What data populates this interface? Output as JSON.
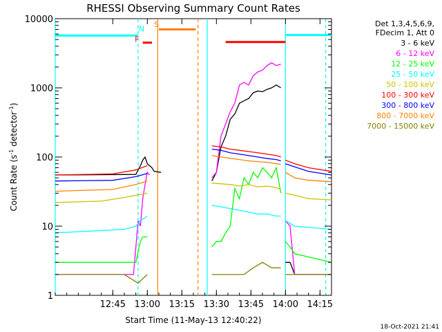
{
  "chart_data": {
    "type": "line",
    "title": "RHESSI Observing Summary Count Rates",
    "xlabel": "Start Time (11-May-13 12:40:22)",
    "ylabel_main": "Count Rate (s",
    "ylabel_sup1": "-1",
    "ylabel_mid": " detector",
    "ylabel_sup2": "-1",
    "ylabel_end": ")",
    "y_scale": "log",
    "ylim": [
      1,
      10000
    ],
    "xlim_minutes": [
      -20,
      100
    ],
    "x_ticks": [
      {
        "t": 5,
        "label": "12:45"
      },
      {
        "t": 20,
        "label": "13:00"
      },
      {
        "t": 35,
        "label": "13:15"
      },
      {
        "t": 50,
        "label": "13:30"
      },
      {
        "t": 65,
        "label": "13:45"
      },
      {
        "t": 80,
        "label": "14:00"
      },
      {
        "t": 95,
        "label": "14:15"
      }
    ],
    "y_ticks": [
      {
        "v": 1,
        "label": "1"
      },
      {
        "v": 10,
        "label": "10"
      },
      {
        "v": 100,
        "label": "100"
      },
      {
        "v": 1000,
        "label": "1000"
      },
      {
        "v": 10000,
        "label": "10000"
      }
    ],
    "legend_header": [
      "Det 1,3,4,5,6,9,",
      "FDecim 1, Att 0"
    ],
    "series": [
      {
        "name": "3 - 6 keV",
        "color": "#000000",
        "points": [
          [
            -20,
            55
          ],
          [
            15,
            56
          ],
          [
            17,
            75
          ],
          [
            18,
            90
          ],
          [
            19,
            100
          ],
          [
            20,
            80
          ],
          [
            22,
            70
          ],
          [
            23,
            62
          ],
          [
            26,
            60
          ],
          [
            45,
            null
          ],
          [
            48,
            45
          ],
          [
            50,
            60
          ],
          [
            52,
            140
          ],
          [
            54,
            200
          ],
          [
            56,
            350
          ],
          [
            58,
            420
          ],
          [
            60,
            600
          ],
          [
            62,
            650
          ],
          [
            64,
            700
          ],
          [
            66,
            850
          ],
          [
            68,
            900
          ],
          [
            70,
            880
          ],
          [
            72,
            950
          ],
          [
            74,
            1000
          ],
          [
            76,
            1100
          ],
          [
            78,
            1000
          ],
          [
            79,
            null
          ],
          [
            80,
            3
          ],
          [
            82,
            3
          ],
          [
            84,
            2
          ],
          [
            100,
            2
          ]
        ]
      },
      {
        "name": "6 - 12 keV",
        "color": "#ff00ff",
        "points": [
          [
            -20,
            2
          ],
          [
            14,
            2
          ],
          [
            16,
            12
          ],
          [
            17,
            10
          ],
          [
            18,
            25
          ],
          [
            19,
            40
          ],
          [
            20,
            60
          ],
          [
            21,
            55
          ],
          [
            22,
            null
          ],
          [
            45,
            null
          ],
          [
            48,
            50
          ],
          [
            50,
            60
          ],
          [
            52,
            200
          ],
          [
            54,
            300
          ],
          [
            56,
            450
          ],
          [
            58,
            600
          ],
          [
            60,
            1100
          ],
          [
            62,
            1200
          ],
          [
            64,
            1100
          ],
          [
            66,
            1500
          ],
          [
            68,
            1700
          ],
          [
            70,
            1800
          ],
          [
            72,
            2100
          ],
          [
            74,
            2300
          ],
          [
            76,
            2100
          ],
          [
            78,
            2200
          ],
          [
            79,
            null
          ],
          [
            80,
            12
          ],
          [
            82,
            10
          ],
          [
            84,
            2
          ],
          [
            100,
            2
          ]
        ]
      },
      {
        "name": "12 - 25 keV",
        "color": "#00ff00",
        "points": [
          [
            -20,
            3
          ],
          [
            15,
            3
          ],
          [
            17,
            6
          ],
          [
            18,
            7
          ],
          [
            20,
            7
          ],
          [
            22,
            null
          ],
          [
            45,
            null
          ],
          [
            48,
            5
          ],
          [
            50,
            6
          ],
          [
            52,
            6
          ],
          [
            54,
            8
          ],
          [
            56,
            10
          ],
          [
            58,
            35
          ],
          [
            60,
            25
          ],
          [
            62,
            50
          ],
          [
            64,
            40
          ],
          [
            66,
            60
          ],
          [
            68,
            50
          ],
          [
            70,
            70
          ],
          [
            72,
            60
          ],
          [
            74,
            50
          ],
          [
            76,
            70
          ],
          [
            78,
            30
          ],
          [
            79,
            null
          ],
          [
            80,
            6
          ],
          [
            82,
            5
          ],
          [
            84,
            4
          ],
          [
            100,
            3
          ]
        ]
      },
      {
        "name": "25 - 50 keV",
        "color": "#00ffff",
        "points": [
          [
            -20,
            8
          ],
          [
            10,
            9
          ],
          [
            15,
            10
          ],
          [
            17,
            12
          ],
          [
            20,
            14
          ],
          [
            22,
            null
          ],
          [
            45,
            null
          ],
          [
            48,
            20
          ],
          [
            52,
            19
          ],
          [
            56,
            18
          ],
          [
            60,
            17
          ],
          [
            64,
            16
          ],
          [
            68,
            15
          ],
          [
            72,
            15
          ],
          [
            76,
            14
          ],
          [
            78,
            14
          ],
          [
            79,
            null
          ],
          [
            80,
            12
          ],
          [
            82,
            11
          ],
          [
            84,
            10
          ],
          [
            100,
            9
          ]
        ]
      },
      {
        "name": "50 - 100 keV",
        "color": "#d0c000",
        "points": [
          [
            -20,
            22
          ],
          [
            0,
            23
          ],
          [
            10,
            26
          ],
          [
            15,
            28
          ],
          [
            20,
            30
          ],
          [
            22,
            null
          ],
          [
            45,
            null
          ],
          [
            48,
            42
          ],
          [
            52,
            41
          ],
          [
            56,
            40
          ],
          [
            60,
            38
          ],
          [
            64,
            40
          ],
          [
            68,
            37
          ],
          [
            72,
            38
          ],
          [
            76,
            36
          ],
          [
            78,
            34
          ],
          [
            79,
            null
          ],
          [
            80,
            30
          ],
          [
            84,
            28
          ],
          [
            90,
            25
          ],
          [
            100,
            24
          ]
        ]
      },
      {
        "name": "100 - 300 keV",
        "color": "#ff0000",
        "points": [
          [
            -20,
            55
          ],
          [
            5,
            57
          ],
          [
            15,
            65
          ],
          [
            20,
            75
          ],
          [
            22,
            null
          ],
          [
            45,
            null
          ],
          [
            48,
            145
          ],
          [
            52,
            140
          ],
          [
            56,
            130
          ],
          [
            60,
            125
          ],
          [
            64,
            120
          ],
          [
            68,
            115
          ],
          [
            72,
            110
          ],
          [
            76,
            105
          ],
          [
            78,
            100
          ],
          [
            79,
            null
          ],
          [
            80,
            90
          ],
          [
            84,
            80
          ],
          [
            90,
            70
          ],
          [
            100,
            62
          ]
        ]
      },
      {
        "name": "300 - 800 keV",
        "color": "#0000ff",
        "points": [
          [
            -20,
            45
          ],
          [
            5,
            46
          ],
          [
            15,
            52
          ],
          [
            20,
            58
          ],
          [
            22,
            null
          ],
          [
            45,
            null
          ],
          [
            48,
            130
          ],
          [
            52,
            125
          ],
          [
            56,
            115
          ],
          [
            60,
            110
          ],
          [
            64,
            105
          ],
          [
            68,
            100
          ],
          [
            72,
            95
          ],
          [
            76,
            92
          ],
          [
            78,
            88
          ],
          [
            79,
            null
          ],
          [
            80,
            80
          ],
          [
            84,
            72
          ],
          [
            90,
            62
          ],
          [
            100,
            55
          ]
        ]
      },
      {
        "name": "800 - 7000 keV",
        "color": "#ff8000",
        "points": [
          [
            -20,
            32
          ],
          [
            5,
            34
          ],
          [
            15,
            40
          ],
          [
            20,
            45
          ],
          [
            22,
            null
          ],
          [
            45,
            null
          ],
          [
            48,
            105
          ],
          [
            52,
            100
          ],
          [
            56,
            96
          ],
          [
            60,
            92
          ],
          [
            64,
            88
          ],
          [
            68,
            86
          ],
          [
            72,
            84
          ],
          [
            76,
            80
          ],
          [
            78,
            78
          ],
          [
            79,
            null
          ],
          [
            80,
            60
          ],
          [
            84,
            50
          ],
          [
            90,
            46
          ],
          [
            100,
            44
          ]
        ]
      },
      {
        "name": "7000 - 15000 keV",
        "color": "#808000",
        "points": [
          [
            -20,
            2
          ],
          [
            10,
            2
          ],
          [
            16,
            1.5
          ],
          [
            20,
            2
          ],
          [
            22,
            null
          ],
          [
            45,
            null
          ],
          [
            48,
            2
          ],
          [
            56,
            2
          ],
          [
            62,
            2
          ],
          [
            66,
            2.5
          ],
          [
            70,
            3
          ],
          [
            74,
            2.5
          ],
          [
            78,
            2.5
          ],
          [
            79,
            null
          ],
          [
            80,
            2
          ],
          [
            100,
            2
          ]
        ]
      }
    ],
    "bars": [
      {
        "label": "",
        "color": "#00ffff",
        "y": 5700,
        "t0": -20,
        "t1": 16
      },
      {
        "label": "N",
        "color": "#00ffff",
        "label_y": 6500,
        "label_t": 17.5
      },
      {
        "label": "F",
        "color": "#ff0000",
        "y": 4500,
        "t0": 18,
        "t1": 22,
        "label_t": 15.5,
        "label_y": 4600
      },
      {
        "label": "S",
        "color": "#ff8000",
        "y": 7000,
        "t0": 25,
        "t1": 41,
        "label_t": 24,
        "label_y": 7600
      },
      {
        "label": "",
        "color": "#ff0000",
        "y": 4600,
        "t0": 54,
        "t1": 80
      },
      {
        "label": "",
        "color": "#00ffff",
        "y": 5800,
        "t0": 80,
        "t1": 100
      }
    ],
    "vlines": [
      {
        "t": -20,
        "color": "#00ffff",
        "dashed": false
      },
      {
        "t": 16,
        "color": "#00ffff",
        "dashed": true
      },
      {
        "t": 24.5,
        "color": "#ff8000",
        "dashed": false
      },
      {
        "t": 42,
        "color": "#ff8000",
        "dashed": true
      },
      {
        "t": 46,
        "color": "#00ffff",
        "dashed": false
      },
      {
        "t": 80,
        "color": "#00ffff",
        "dashed": false
      },
      {
        "t": 97.5,
        "color": "#00ffff",
        "dashed": true
      }
    ],
    "grid": false,
    "legend_position": "right"
  },
  "timestamp": "18-Oct-2021 21:41"
}
